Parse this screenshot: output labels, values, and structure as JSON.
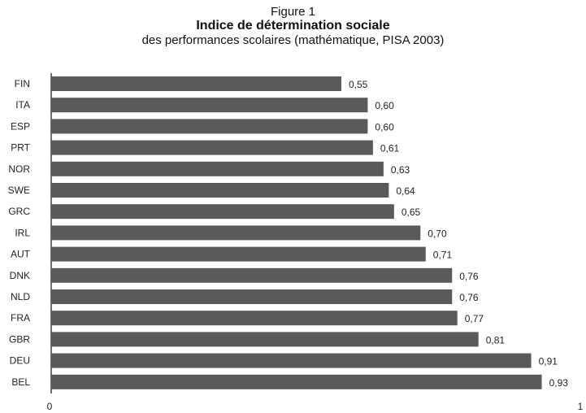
{
  "header": {
    "figure_label": "Figure 1",
    "title": "Indice de détermination sociale",
    "subtitle": "des performances scolaires (mathématique, PISA 2003)"
  },
  "colors": {
    "bar": "#5a5a5a",
    "axis": "#333333",
    "text": "#222222"
  },
  "chart_data": {
    "type": "bar",
    "orientation": "horizontal",
    "title": "Indice de détermination sociale",
    "subtitle": "des performances scolaires (mathématique, PISA 2003)",
    "categories": [
      "FIN",
      "ITA",
      "ESP",
      "PRT",
      "NOR",
      "SWE",
      "GRC",
      "IRL",
      "AUT",
      "DNK",
      "NLD",
      "FRA",
      "GBR",
      "DEU",
      "BEL"
    ],
    "values": [
      0.55,
      0.6,
      0.6,
      0.61,
      0.63,
      0.64,
      0.65,
      0.7,
      0.71,
      0.76,
      0.76,
      0.77,
      0.81,
      0.91,
      0.93
    ],
    "value_labels": [
      "0,55",
      "0,60",
      "0,60",
      "0,61",
      "0,63",
      "0,64",
      "0,65",
      "0,70",
      "0,71",
      "0,76",
      "0,76",
      "0,77",
      "0,81",
      "0,91",
      "0,93"
    ],
    "xlim": [
      0,
      1
    ],
    "xticks": [
      0,
      1
    ],
    "xtick_labels": [
      "0",
      "1"
    ],
    "xlabel": "",
    "ylabel": "",
    "grid": false,
    "legend": "none"
  }
}
